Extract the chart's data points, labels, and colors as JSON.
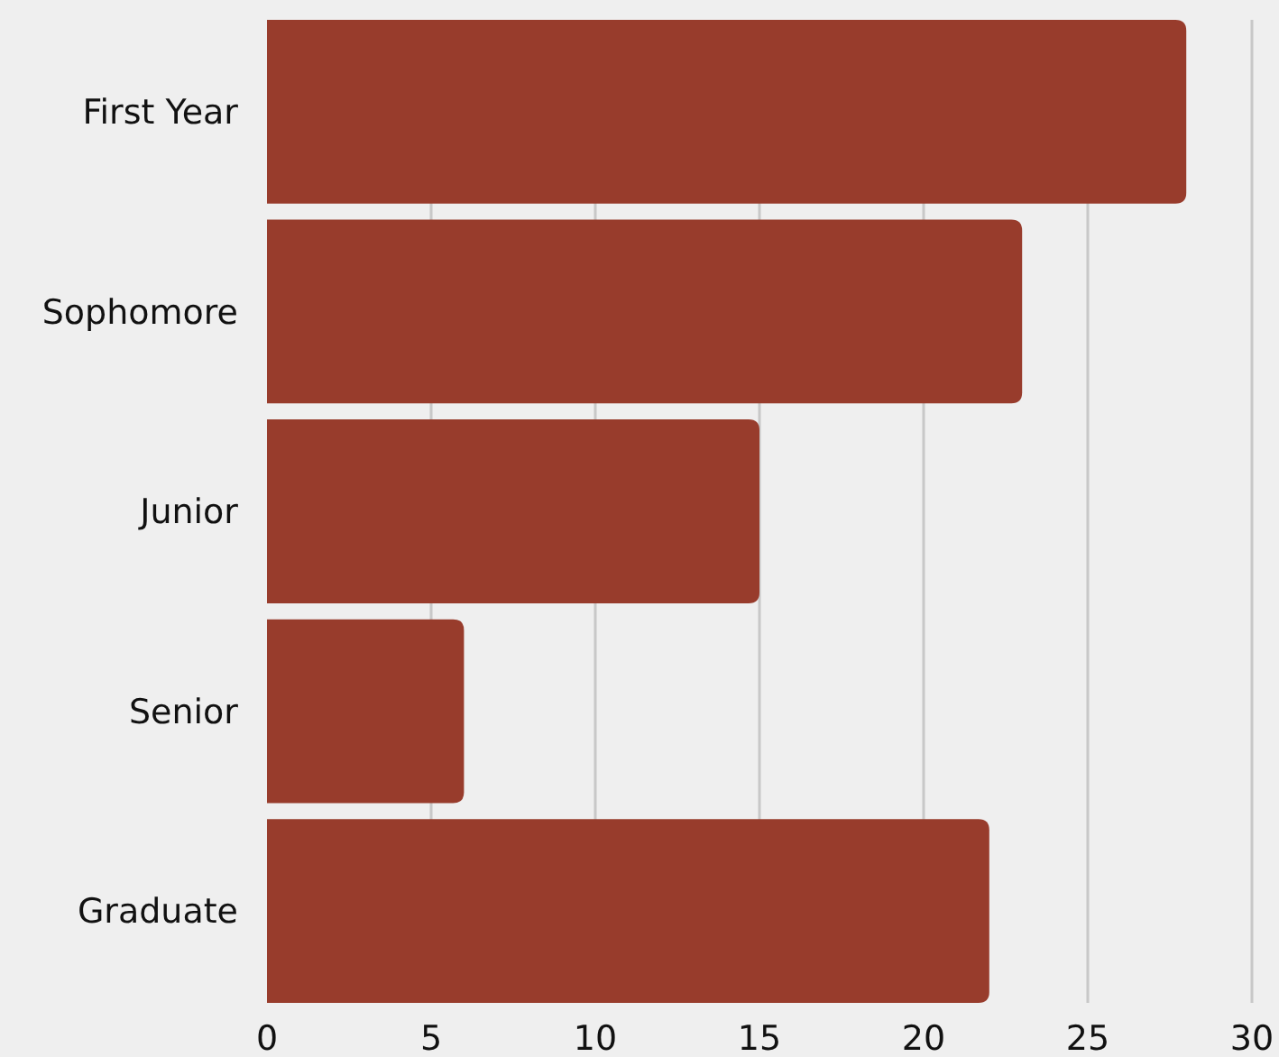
{
  "chart_data": {
    "type": "bar",
    "orientation": "horizontal",
    "categories": [
      "First Year",
      "Sophomore",
      "Junior",
      "Senior",
      "Graduate"
    ],
    "values": [
      28,
      23,
      15,
      6,
      22
    ],
    "color": "#983c2c",
    "xlim": [
      0,
      30
    ],
    "xticks": [
      0,
      5,
      10,
      15,
      20,
      25,
      30
    ],
    "grid": "x"
  }
}
